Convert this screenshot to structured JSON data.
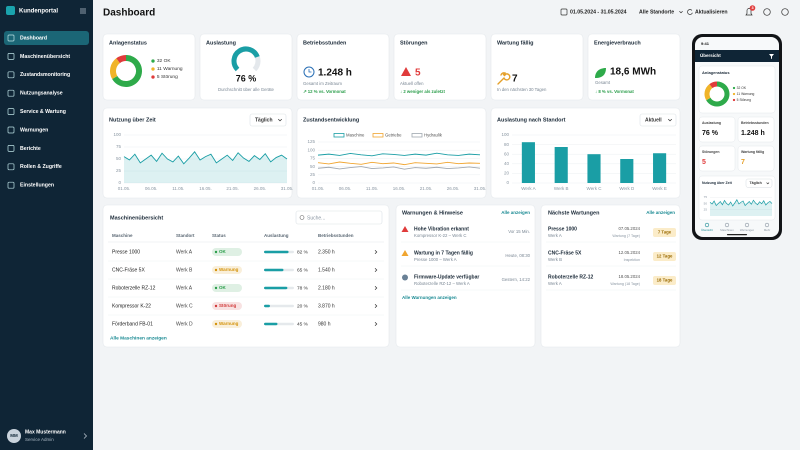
{
  "sidebar": {
    "brand": "Kundenportal",
    "menu": [
      "Dashboard",
      "Maschinenübersicht",
      "Zustandsmonitoring",
      "Nutzungsanalyse",
      "Service & Wartung",
      "Warnungen",
      "Berichte",
      "Rollen & Zugriffe",
      "Einstellungen"
    ],
    "user": {
      "initials": "MM",
      "name": "Max Mustermann",
      "role": "Service Admin"
    }
  },
  "header": {
    "title": "Dashboard",
    "date_range": "01.05.2024 - 31.05.2024",
    "location": "Alle Standorte",
    "refresh": "Aktualisieren",
    "notifications": 3
  },
  "kpis": {
    "status": {
      "type": "pie",
      "title": "Anlagenstatus",
      "categories": [
        "OK",
        "Warnung",
        "Störung"
      ],
      "values": [
        32,
        11,
        5
      ],
      "colors": [
        "#2eaa4a",
        "#f0b429",
        "#e03b3b"
      ]
    },
    "utilization": {
      "type": "gauge",
      "title": "Auslastung",
      "value": 76,
      "value_label": "76 %",
      "ylim": [
        0,
        100
      ],
      "color": "#1a9ea5",
      "note": "Durchschnitt über alle Geräte"
    },
    "hours": {
      "title": "Betriebsstunden",
      "value": "1.248 h",
      "note": "Gesamt im Zeitraum",
      "trend": "↗ 12 % vs. Vormonat"
    },
    "faults": {
      "title": "Störungen",
      "value": "5",
      "note": "Aktuell offen",
      "trend": "↓ 2 weniger als zuletzt"
    },
    "maintenance": {
      "title": "Wartung fällig",
      "value": "7",
      "note": "In den nächsten 30 Tagen"
    },
    "energy": {
      "title": "Energieverbrauch",
      "value": "18,6 MWh",
      "note": "Gesamt",
      "trend": "↓ 8 % vs. Vormonat"
    }
  },
  "usage_chart": {
    "type": "area",
    "title": "Nutzung über Zeit",
    "period": "Täglich",
    "color": "#1a9ea5",
    "grid": true,
    "x": [
      1,
      2,
      3,
      4,
      5,
      6,
      7,
      8,
      9,
      10,
      11,
      12,
      13,
      14,
      15,
      16,
      17,
      18,
      19,
      20,
      21,
      22,
      23,
      24,
      25,
      26,
      27,
      28,
      29,
      30,
      31
    ],
    "values": [
      55,
      48,
      60,
      42,
      50,
      58,
      45,
      62,
      50,
      44,
      56,
      40,
      52,
      65,
      48,
      55,
      60,
      42,
      50,
      58,
      47,
      63,
      52,
      45,
      57,
      49,
      61,
      44,
      53,
      58,
      50
    ],
    "xlim": [
      1,
      31
    ],
    "xticks": [
      {
        "value": 1,
        "label": "01.05."
      },
      {
        "value": 6,
        "label": "06.05."
      },
      {
        "value": 11,
        "label": "11.05."
      },
      {
        "value": 16,
        "label": "16.05."
      },
      {
        "value": 21,
        "label": "21.05."
      },
      {
        "value": 26,
        "label": "26.05."
      },
      {
        "value": 31,
        "label": "31.05."
      }
    ],
    "ylim": [
      0,
      100
    ],
    "yticks": [
      0,
      25,
      50,
      75,
      100
    ]
  },
  "condition_chart": {
    "type": "line",
    "title": "Zustandsentwicklung",
    "grid": true,
    "x": [
      1,
      3,
      5,
      7,
      9,
      11,
      13,
      15,
      17,
      19,
      21,
      23,
      25,
      27,
      29,
      31
    ],
    "series": [
      {
        "name": "Maschine",
        "color": "#1a9ea5",
        "values": [
          85,
          88,
          84,
          90,
          86,
          83,
          89,
          87,
          84,
          88,
          85,
          91,
          86,
          84,
          88,
          86
        ]
      },
      {
        "name": "Getriebe",
        "color": "#f0a530",
        "values": [
          62,
          58,
          64,
          60,
          57,
          63,
          59,
          61,
          56,
          62,
          60,
          58,
          63,
          59,
          61,
          60
        ]
      },
      {
        "name": "Hydraulik",
        "color": "#a0a8b0",
        "values": [
          45,
          48,
          43,
          47,
          50,
          44,
          46,
          49,
          42,
          47,
          45,
          48,
          44,
          46,
          49,
          45
        ]
      }
    ],
    "xlim": [
      1,
      31
    ],
    "xticks": [
      {
        "value": 1,
        "label": "01.05."
      },
      {
        "value": 6,
        "label": "06.05."
      },
      {
        "value": 11,
        "label": "11.05."
      },
      {
        "value": 16,
        "label": "16.05."
      },
      {
        "value": 21,
        "label": "21.05."
      },
      {
        "value": 26,
        "label": "26.05."
      },
      {
        "value": 31,
        "label": "31.05."
      }
    ],
    "ylim": [
      0,
      125
    ],
    "yticks": [
      0,
      25,
      50,
      75,
      100,
      125
    ]
  },
  "site_chart": {
    "type": "bar",
    "title": "Auslastung nach Standort",
    "period": "Aktuell",
    "color": "#1a9ea5",
    "grid": true,
    "categories": [
      "Werk A",
      "Werk B",
      "Werk C",
      "Werk D",
      "Werk E"
    ],
    "values": [
      85,
      75,
      60,
      50,
      62
    ],
    "ylim": [
      0,
      100
    ],
    "yticks": [
      0,
      20,
      40,
      60,
      80,
      100
    ]
  },
  "machines": {
    "title": "Maschinenübersicht",
    "search": "Suche...",
    "columns": [
      "Maschine",
      "Standort",
      "Status",
      "Auslastung",
      "Betriebsstunden"
    ],
    "bar_color": "#1a9ea5",
    "rows": [
      {
        "name": "Presse 1000",
        "site": "Werk A",
        "status": "OK",
        "status_color": "#2a9d4a",
        "utilization": 82,
        "utilization_label": "82 %",
        "hours": "2.350 h"
      },
      {
        "name": "CNC-Fräse 5X",
        "site": "Werk B",
        "status": "Warnung",
        "status_color": "#d4920a",
        "utilization": 65,
        "utilization_label": "65 %",
        "hours": "1.540 h"
      },
      {
        "name": "Roboterzelle RZ-12",
        "site": "Werk A",
        "status": "OK",
        "status_color": "#2a9d4a",
        "utilization": 78,
        "utilization_label": "78 %",
        "hours": "2.180 h"
      },
      {
        "name": "Kompressor K-22",
        "site": "Werk C",
        "status": "Störung",
        "status_color": "#d13a3a",
        "utilization": 20,
        "utilization_label": "20 %",
        "hours": "3.870 h"
      },
      {
        "name": "Förderband FB-01",
        "site": "Werk D",
        "status": "Warnung",
        "status_color": "#d4920a",
        "utilization": 45,
        "utilization_label": "45 %",
        "hours": "980 h"
      }
    ],
    "link": "Alle Maschinen anzeigen"
  },
  "warnings": {
    "title": "Warnungen & Hinweise",
    "link_top": "Alle anzeigen",
    "items": [
      {
        "title": "Hohe Vibration erkannt",
        "detail": "Kompressor K-22 – Werk C",
        "time": "Vor 15 Min.",
        "color": "#e03b3b",
        "icon": "triangle"
      },
      {
        "title": "Wartung in 7 Tagen fällig",
        "detail": "Presse 1000 – Werk A",
        "time": "Heute, 08:30",
        "color": "#f0a530",
        "icon": "triangle"
      },
      {
        "title": "Firmware-Update verfügbar",
        "detail": "Roboterzelle RZ-12 – Werk A",
        "time": "Gestern, 14:22",
        "color": "#6a8196",
        "icon": "circle"
      }
    ],
    "link": "Alle Warnungen anzeigen"
  },
  "maintenance_list": {
    "title": "Nächste Wartungen",
    "link_top": "Alle anzeigen",
    "badge_color": "#f0b429",
    "items": [
      {
        "name": "Presse 1000",
        "site": "Werk A",
        "date": "07.05.2024",
        "kind": "Wartung (7 Tage)",
        "badge": "7 Tage"
      },
      {
        "name": "CNC-Fräse 5X",
        "site": "Werk B",
        "date": "12.05.2024",
        "kind": "Inspektion",
        "badge": "12 Tage"
      },
      {
        "name": "Roboterzelle RZ-12",
        "site": "Werk A",
        "date": "18.05.2024",
        "kind": "Wartung (18 Tage)",
        "badge": "18 Tage"
      }
    ]
  },
  "phone": {
    "time": "9:41",
    "title": "Übersicht",
    "nav": [
      "Übersicht",
      "Maschinen",
      "Warnungen",
      "Mehr"
    ]
  }
}
